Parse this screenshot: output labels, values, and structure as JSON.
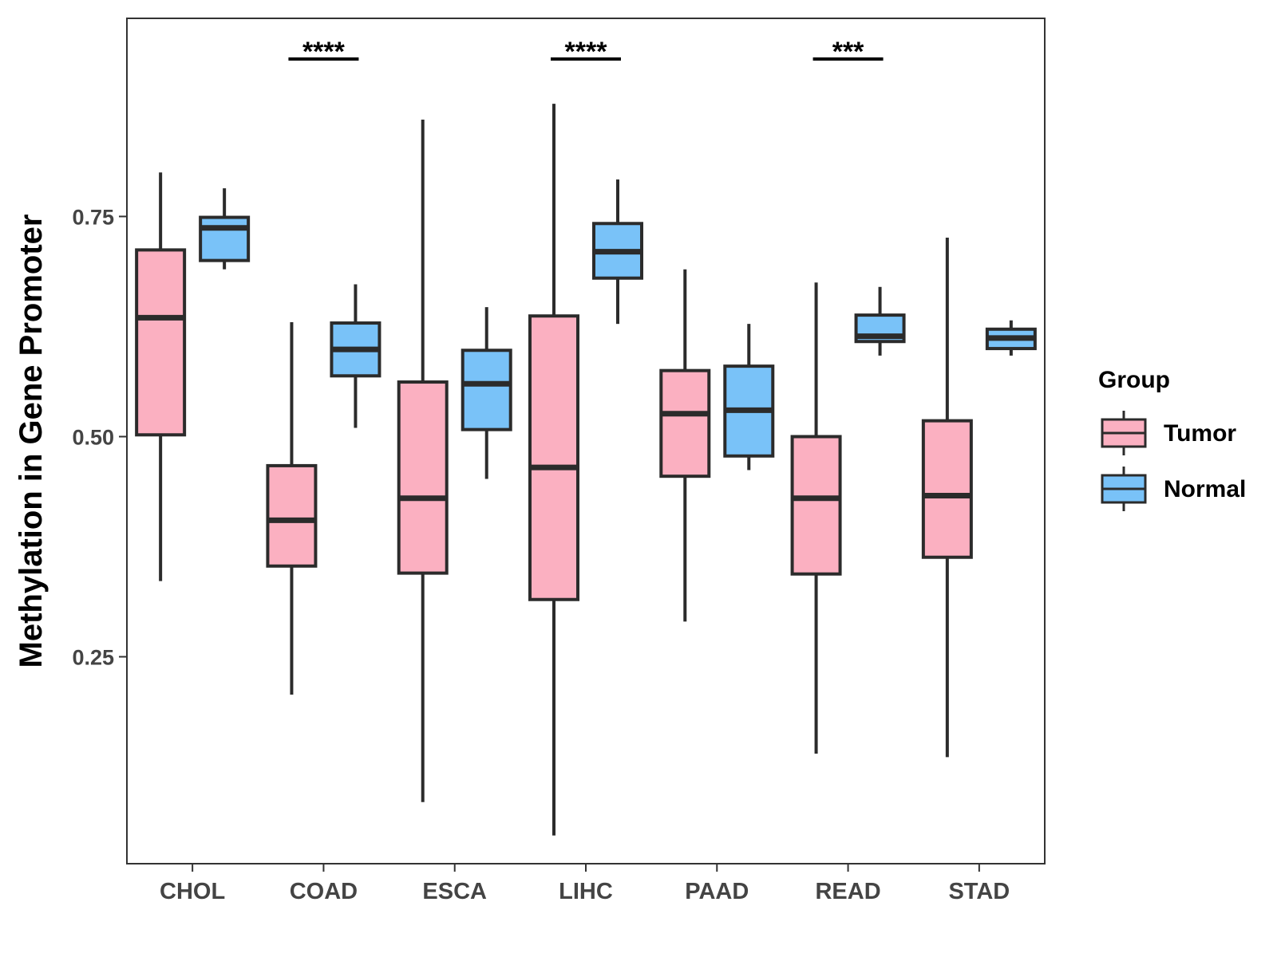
{
  "chart_data": {
    "type": "boxplot",
    "title": "",
    "xlabel": "",
    "ylabel": "Methylation in Gene Promoter",
    "ylim": [
      0.015,
      0.975
    ],
    "yticks": [
      "0.25",
      "0.50",
      "0.75"
    ],
    "ytick_values": [
      0.25,
      0.5,
      0.75
    ],
    "grid": false,
    "categories": [
      "CHOL",
      "COAD",
      "ESCA",
      "LIHC",
      "PAAD",
      "READ",
      "STAD"
    ],
    "legend": {
      "title": "Group",
      "position": "right",
      "entries": [
        {
          "name": "Tumor",
          "color": "#FBB0C1"
        },
        {
          "name": "Normal",
          "color": "#79C2F8"
        }
      ]
    },
    "series": [
      {
        "name": "Tumor",
        "color": "#FBB0C1",
        "boxes": [
          {
            "category": "CHOL",
            "min": 0.336,
            "q1": 0.502,
            "median": 0.635,
            "q3": 0.712,
            "max": 0.8
          },
          {
            "category": "COAD",
            "min": 0.207,
            "q1": 0.353,
            "median": 0.405,
            "q3": 0.467,
            "max": 0.63
          },
          {
            "category": "ESCA",
            "min": 0.085,
            "q1": 0.345,
            "median": 0.43,
            "q3": 0.562,
            "max": 0.86
          },
          {
            "category": "LIHC",
            "min": 0.047,
            "q1": 0.315,
            "median": 0.465,
            "q3": 0.637,
            "max": 0.878
          },
          {
            "category": "PAAD",
            "min": 0.29,
            "q1": 0.455,
            "median": 0.526,
            "q3": 0.575,
            "max": 0.69
          },
          {
            "category": "READ",
            "min": 0.14,
            "q1": 0.344,
            "median": 0.43,
            "q3": 0.5,
            "max": 0.675
          },
          {
            "category": "STAD",
            "min": 0.136,
            "q1": 0.363,
            "median": 0.433,
            "q3": 0.518,
            "max": 0.726
          }
        ]
      },
      {
        "name": "Normal",
        "color": "#79C2F8",
        "boxes": [
          {
            "category": "CHOL",
            "min": 0.69,
            "q1": 0.7,
            "median": 0.737,
            "q3": 0.749,
            "max": 0.782
          },
          {
            "category": "COAD",
            "min": 0.51,
            "q1": 0.569,
            "median": 0.599,
            "q3": 0.629,
            "max": 0.673
          },
          {
            "category": "ESCA",
            "min": 0.452,
            "q1": 0.508,
            "median": 0.56,
            "q3": 0.598,
            "max": 0.647
          },
          {
            "category": "LIHC",
            "min": 0.628,
            "q1": 0.68,
            "median": 0.71,
            "q3": 0.742,
            "max": 0.792
          },
          {
            "category": "PAAD",
            "min": 0.462,
            "q1": 0.478,
            "median": 0.53,
            "q3": 0.58,
            "max": 0.628
          },
          {
            "category": "READ",
            "min": 0.592,
            "q1": 0.608,
            "median": 0.614,
            "q3": 0.638,
            "max": 0.67
          },
          {
            "category": "STAD",
            "min": 0.592,
            "q1": 0.6,
            "median": 0.612,
            "q3": 0.622,
            "max": 0.632
          }
        ]
      }
    ],
    "annotations": [
      {
        "category": "COAD",
        "label": "****"
      },
      {
        "category": "LIHC",
        "label": "****"
      },
      {
        "category": "READ",
        "label": "***"
      }
    ]
  }
}
